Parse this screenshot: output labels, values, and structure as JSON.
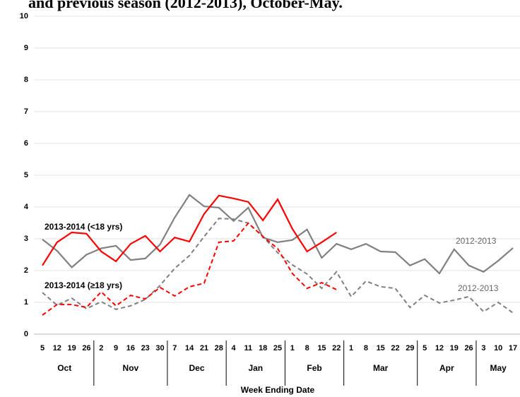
{
  "chart_data": {
    "type": "line",
    "title": "and previous season (2012-2013), October-May.",
    "x_label": "Week Ending Date",
    "categories": [
      "5",
      "12",
      "19",
      "26",
      "2",
      "9",
      "16",
      "23",
      "30",
      "7",
      "14",
      "21",
      "28",
      "4",
      "11",
      "18",
      "25",
      "1",
      "8",
      "15",
      "22",
      "1",
      "8",
      "15",
      "22",
      "29",
      "5",
      "12",
      "19",
      "26",
      "3",
      "10",
      "17"
    ],
    "months": [
      {
        "label": "Oct",
        "weeks": 4
      },
      {
        "label": "Nov",
        "weeks": 5
      },
      {
        "label": "Dec",
        "weeks": 4
      },
      {
        "label": "Jan",
        "weeks": 4
      },
      {
        "label": "Feb",
        "weeks": 4
      },
      {
        "label": "Mar",
        "weeks": 5
      },
      {
        "label": "Apr",
        "weeks": 4
      },
      {
        "label": "May",
        "weeks": 3
      }
    ],
    "ylim": [
      0,
      10
    ],
    "yticks": [
      0,
      1,
      2,
      3,
      4,
      5,
      6,
      7,
      8,
      9,
      10
    ],
    "grid": true,
    "series": [
      {
        "name": "2012-2013",
        "color": "#808080",
        "dash": false,
        "values": [
          2.98,
          2.62,
          2.1,
          2.5,
          2.7,
          2.78,
          2.33,
          2.38,
          2.82,
          3.67,
          4.38,
          4.02,
          3.98,
          3.56,
          3.98,
          3.04,
          2.89,
          2.96,
          3.29,
          2.4,
          2.84,
          2.67,
          2.84,
          2.6,
          2.58,
          2.16,
          2.36,
          1.91,
          2.67,
          2.16,
          1.96,
          2.31,
          2.71
        ]
      },
      {
        "name": "2012-2013",
        "color": "#808080",
        "dash": true,
        "values": [
          1.31,
          0.91,
          1.13,
          0.8,
          1.02,
          0.78,
          0.89,
          1.09,
          1.53,
          2.07,
          2.47,
          3.07,
          3.64,
          3.62,
          3.49,
          3.07,
          2.56,
          2.18,
          1.89,
          1.44,
          1.96,
          1.18,
          1.67,
          1.49,
          1.44,
          0.84,
          1.22,
          0.98,
          1.07,
          1.18,
          0.71,
          1.0,
          0.67
        ]
      },
      {
        "name": "2013-2014  (<18 yrs)",
        "color": "#ff0000",
        "dash": false,
        "values": [
          2.16,
          2.89,
          3.2,
          3.16,
          2.6,
          2.29,
          2.84,
          3.09,
          2.6,
          3.04,
          2.91,
          3.78,
          4.36,
          4.27,
          4.16,
          3.58,
          4.24,
          3.31,
          2.6,
          2.89,
          3.2,
          null,
          null,
          null,
          null,
          null,
          null,
          null,
          null,
          null,
          null,
          null,
          null
        ]
      },
      {
        "name": "2013-2014  (≥18 yrs)",
        "color": "#ff0000",
        "dash": true,
        "values": [
          0.6,
          0.93,
          0.93,
          0.84,
          1.33,
          0.89,
          1.22,
          1.11,
          1.47,
          1.2,
          1.49,
          1.6,
          2.89,
          2.93,
          3.49,
          3.07,
          2.69,
          1.91,
          1.44,
          1.62,
          1.4,
          null,
          null,
          null,
          null,
          null,
          null,
          null,
          null,
          null,
          null,
          null,
          null
        ]
      }
    ]
  }
}
